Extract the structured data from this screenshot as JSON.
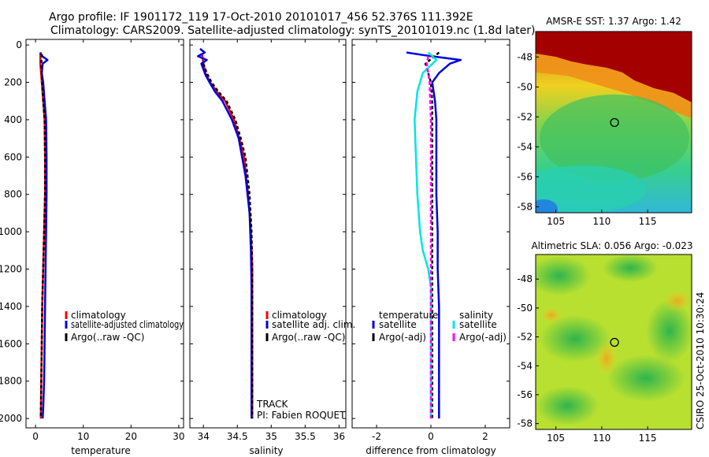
{
  "header": {
    "title_line1": "Argo profile: IF 1901172_119 17-Oct-2010 20101017_456 52.376S 111.392E",
    "title_line2": "Climatology: CARS2009. Satellite-adjusted climatology: synTS_20101019.nc (1.8d later)"
  },
  "side_stamp": "CSIRO 25-Oct-2010 10:30:24",
  "colors": {
    "climatology": "#ff0000",
    "satellite": "#0000dd",
    "argo": "#000000",
    "sal_satellite": "#00e5e5",
    "sal_argo": "#ff00ff"
  },
  "chart_data": [
    {
      "type": "line",
      "name": "temperature-profile",
      "xlabel": "temperature",
      "xlim": [
        -2,
        31
      ],
      "ylim": [
        2050,
        -30
      ],
      "xticks": [
        0,
        10,
        20,
        30
      ],
      "yticks": [
        0,
        200,
        400,
        600,
        800,
        1000,
        1200,
        1400,
        1600,
        1800,
        2000
      ],
      "legend": [
        "climatology",
        "satellite-adjusted climatology",
        "Argo(..raw -QC)"
      ],
      "series": [
        {
          "name": "climatology",
          "color": "#ff0000",
          "dash": "",
          "x": [
            1.0,
            1.0,
            1.3,
            1.6,
            1.9,
            2.0,
            2.0,
            1.8,
            1.6,
            1.4,
            1.3,
            1.2,
            1.1
          ],
          "y": [
            40,
            100,
            200,
            300,
            400,
            600,
            800,
            1000,
            1200,
            1400,
            1600,
            1800,
            2000
          ]
        },
        {
          "name": "satellite-adjusted climatology",
          "color": "#0000dd",
          "dash": "",
          "x": [
            1.0,
            1.4,
            2.5,
            1.5,
            1.3,
            1.6,
            1.9,
            2.2,
            2.3,
            2.3,
            2.2,
            2.1,
            2.0,
            1.9,
            1.8,
            1.6,
            1.5
          ],
          "y": [
            40,
            60,
            80,
            100,
            150,
            200,
            300,
            400,
            600,
            800,
            1000,
            1200,
            1400,
            1600,
            1800,
            1950,
            2000
          ]
        },
        {
          "name": "Argo(..raw -QC)",
          "color": "#000000",
          "dash": "4 3",
          "x": [
            1.3,
            1.2,
            1.4,
            1.6,
            1.9,
            2.0,
            2.0,
            1.8,
            1.6,
            1.4,
            1.3,
            1.2,
            1.1
          ],
          "y": [
            50,
            100,
            200,
            300,
            400,
            600,
            800,
            1000,
            1200,
            1400,
            1600,
            1800,
            2000
          ]
        }
      ]
    },
    {
      "type": "line",
      "name": "salinity-profile",
      "xlabel": "salinity",
      "xlim": [
        33.8,
        36.1
      ],
      "ylim": [
        2050,
        -30
      ],
      "xticks": [
        34,
        34.5,
        35,
        35.5,
        36
      ],
      "legend": [
        "climatology",
        "satellite adj. clim.",
        "Argo(..raw -QC)"
      ],
      "annotations": [
        "TRACK",
        "PI: Fabien ROQUET"
      ],
      "series": [
        {
          "name": "climatology",
          "color": "#ff0000",
          "dash": "",
          "x": [
            33.98,
            34.0,
            34.03,
            34.1,
            34.2,
            34.32,
            34.45,
            34.53,
            34.6,
            34.66,
            34.7,
            34.72,
            34.72,
            34.72,
            34.72,
            34.72
          ],
          "y": [
            50,
            100,
            150,
            200,
            250,
            300,
            400,
            500,
            600,
            800,
            1000,
            1200,
            1400,
            1600,
            1800,
            2000
          ]
        },
        {
          "name": "satellite adj. clim.",
          "color": "#0000dd",
          "dash": "",
          "x": [
            33.95,
            34.02,
            33.92,
            34.05,
            33.97,
            34.0,
            34.03,
            34.09,
            34.17,
            34.28,
            34.42,
            34.52,
            34.62,
            34.68,
            34.7,
            34.71,
            34.71,
            34.71,
            34.71
          ],
          "y": [
            20,
            40,
            60,
            80,
            100,
            130,
            160,
            200,
            250,
            300,
            400,
            500,
            700,
            900,
            1100,
            1300,
            1500,
            1800,
            2000
          ]
        },
        {
          "name": "Argo(..raw -QC)",
          "color": "#000000",
          "dash": "4 3",
          "x": [
            34.0,
            34.05,
            34.12,
            34.22,
            34.34,
            34.47,
            34.55,
            34.62,
            34.68,
            34.71,
            34.72,
            34.72,
            34.72,
            34.72
          ],
          "y": [
            100,
            150,
            200,
            250,
            300,
            400,
            500,
            600,
            800,
            1000,
            1200,
            1400,
            1600,
            2000
          ]
        }
      ]
    },
    {
      "type": "line",
      "name": "difference-profile",
      "xlabel": "difference from climatology",
      "xlim": [
        -2.9,
        2.9
      ],
      "ylim": [
        2050,
        -30
      ],
      "xticks": [
        -2,
        0,
        2
      ],
      "legend_headers": [
        "temperature",
        "salinity"
      ],
      "legend": [
        "satellite",
        "Argo(-adj)",
        "satellite",
        "Argo(-adj)"
      ],
      "series": [
        {
          "name": "temperature satellite",
          "color": "#0000dd",
          "dash": "",
          "x": [
            -0.9,
            0.0,
            1.1,
            0.7,
            0.3,
            0.05,
            0.15,
            0.2,
            0.2,
            0.2,
            0.25,
            0.25,
            0.3,
            0.3,
            0.3
          ],
          "y": [
            40,
            60,
            80,
            100,
            150,
            200,
            300,
            400,
            600,
            800,
            1000,
            1200,
            1400,
            1800,
            2000
          ]
        },
        {
          "name": "temperature Argo(-adj)",
          "color": "#000000",
          "dash": "4 3",
          "x": [
            0.3,
            -0.2,
            0.0,
            0.05,
            0.05,
            0.05,
            0.05,
            0.05,
            0.05,
            0.05,
            0.05,
            0.05,
            0.05
          ],
          "y": [
            40,
            100,
            200,
            300,
            400,
            600,
            800,
            1000,
            1200,
            1400,
            1600,
            1800,
            2000
          ]
        },
        {
          "name": "salinity satellite",
          "color": "#00e5e5",
          "dash": "",
          "x": [
            -0.1,
            0.2,
            -0.3,
            -0.5,
            -0.6,
            -0.55,
            -0.5,
            -0.4,
            -0.3,
            -0.1,
            0.0,
            0.0,
            0.0,
            0.0
          ],
          "y": [
            40,
            80,
            150,
            250,
            400,
            600,
            800,
            1000,
            1100,
            1200,
            1300,
            1600,
            1800,
            2000
          ]
        },
        {
          "name": "salinity Argo(-adj)",
          "color": "#ff00ff",
          "dash": "5 3",
          "x": [
            -0.1,
            -0.15,
            -0.05,
            0.0,
            0.0,
            0.0,
            0.0,
            0.0
          ],
          "y": [
            60,
            100,
            200,
            400,
            800,
            1200,
            1600,
            2000
          ]
        }
      ]
    },
    {
      "type": "heatmap",
      "name": "sst-map",
      "title": "AMSR-E SST: 1.37 Argo: 1.42",
      "xticks": [
        105,
        110,
        115
      ],
      "yticks": [
        -48,
        -50,
        -52,
        -54,
        -56,
        -58
      ],
      "xlim": [
        102.8,
        119.8
      ],
      "ylim": [
        -58.4,
        -46.3
      ],
      "marker": {
        "lon": 111.392,
        "lat": -52.376
      }
    },
    {
      "type": "heatmap",
      "name": "sla-map",
      "title": "Altimetric SLA: 0.056 Argo: -0.023",
      "xticks": [
        105,
        110,
        115
      ],
      "yticks": [
        -48,
        -50,
        -52,
        -54,
        -56,
        -58
      ],
      "xlim": [
        102.8,
        119.8
      ],
      "ylim": [
        -58.4,
        -46.3
      ],
      "marker": {
        "lon": 111.392,
        "lat": -52.376
      }
    }
  ]
}
